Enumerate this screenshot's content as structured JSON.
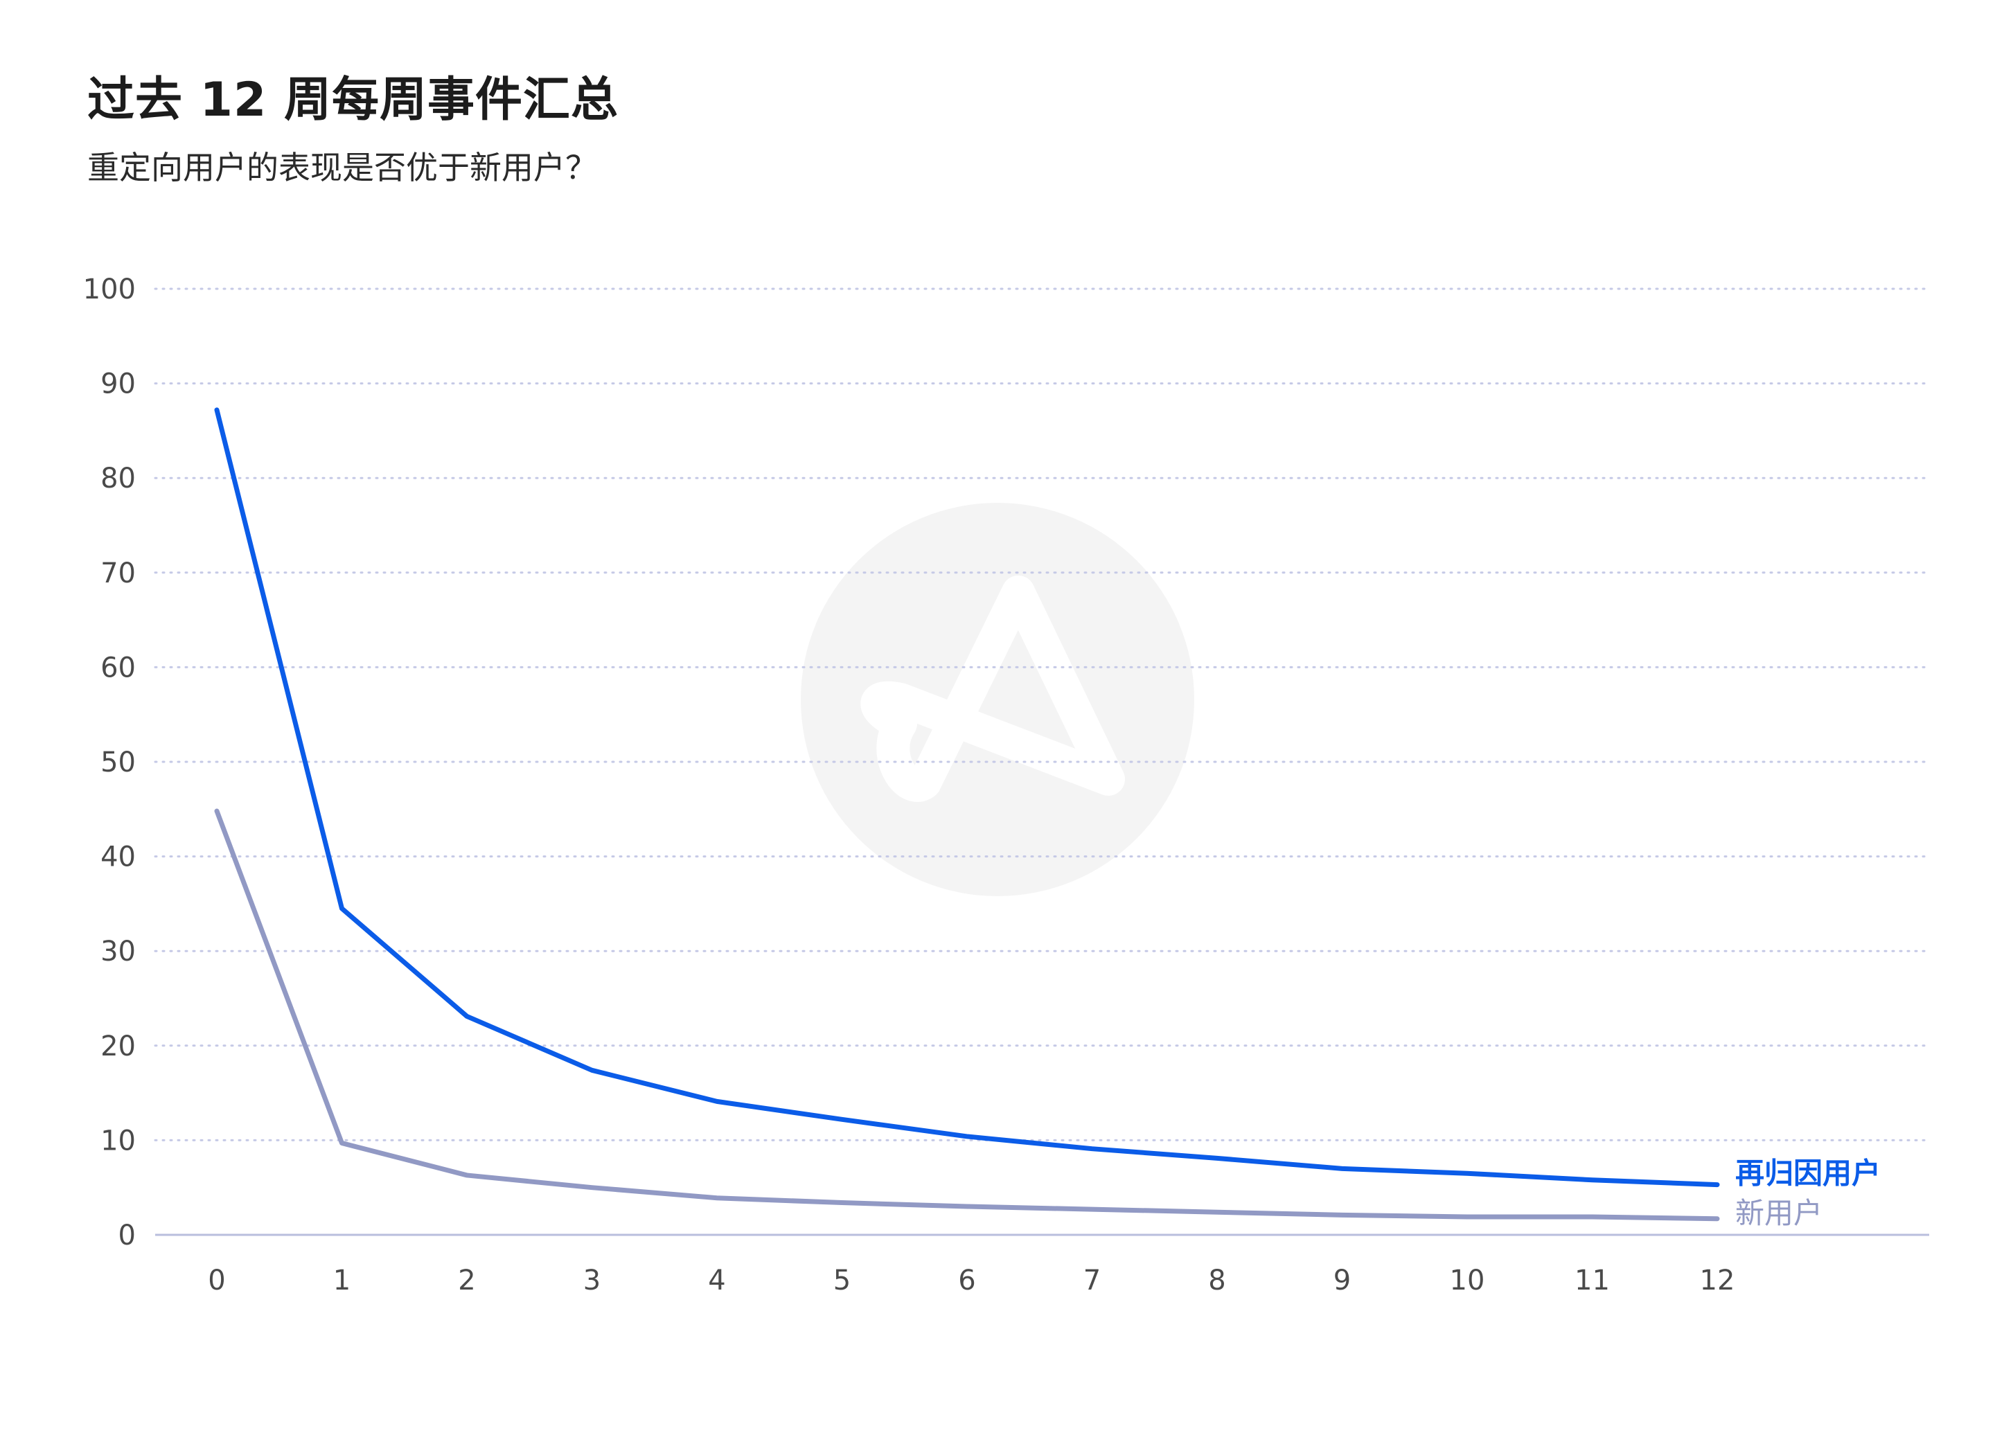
{
  "header": {
    "title": "过去 12 周每周事件汇总",
    "subtitle": "重定向用户的表现是否优于新用户？"
  },
  "chart_data": {
    "type": "line",
    "x": [
      0,
      1,
      2,
      3,
      4,
      5,
      6,
      7,
      8,
      9,
      10,
      11,
      12
    ],
    "xticks": [
      "0",
      "1",
      "2",
      "3",
      "4",
      "5",
      "6",
      "7",
      "8",
      "9",
      "10",
      "11",
      "12"
    ],
    "ylim": [
      0,
      100
    ],
    "yticks": [
      "0",
      "10",
      "20",
      "30",
      "40",
      "50",
      "60",
      "70",
      "80",
      "90",
      "100"
    ],
    "grid": true,
    "legend": "inline-right",
    "series": [
      {
        "name": "再归因用户",
        "color": "#0b5ce8",
        "values": [
          87.2,
          34.5,
          23.1,
          17.4,
          14.1,
          12.2,
          10.4,
          9.1,
          8.1,
          7.0,
          6.5,
          5.8,
          5.3
        ]
      },
      {
        "name": "新用户",
        "color": "#9199c4",
        "values": [
          44.8,
          9.7,
          6.3,
          5.0,
          3.9,
          3.4,
          3.0,
          2.7,
          2.4,
          2.1,
          1.9,
          1.9,
          1.7
        ]
      }
    ]
  },
  "colors": {
    "grid": "#c5c9e6",
    "axis": "#b9bedd",
    "tick_label": "#4a4a4a",
    "watermark": "#f4f4f4"
  },
  "watermark": {
    "icon": "adjust-logo-icon"
  }
}
